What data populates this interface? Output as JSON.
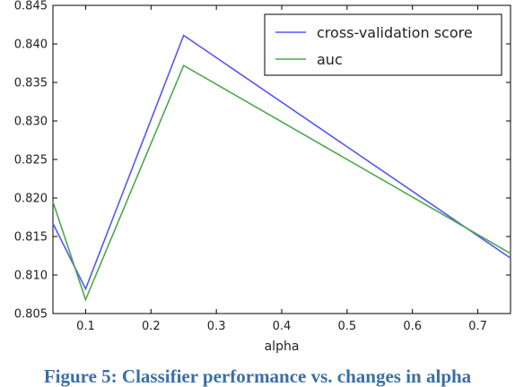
{
  "caption": "Figure 5: Classifier performance vs. changes in alpha",
  "chart_data": {
    "type": "line",
    "xlabel": "alpha",
    "ylabel": "",
    "xlim": [
      0.05,
      0.75
    ],
    "ylim": [
      0.805,
      0.845
    ],
    "x_ticks": [
      0.1,
      0.2,
      0.3,
      0.4,
      0.5,
      0.6,
      0.7
    ],
    "x_tick_labels": [
      "0.1",
      "0.2",
      "0.3",
      "0.4",
      "0.5",
      "0.6",
      "0.7"
    ],
    "y_ticks": [
      0.805,
      0.81,
      0.815,
      0.82,
      0.825,
      0.83,
      0.835,
      0.84,
      0.845
    ],
    "y_tick_labels": [
      "0.805",
      "0.810",
      "0.815",
      "0.820",
      "0.825",
      "0.830",
      "0.835",
      "0.840",
      "0.845"
    ],
    "grid": false,
    "legend_position": "top-right",
    "series": [
      {
        "name": "cross-validation score",
        "color": "#5555ff",
        "x": [
          0.05,
          0.1,
          0.25,
          0.75
        ],
        "y": [
          0.8167,
          0.8082,
          0.8411,
          0.8122
        ]
      },
      {
        "name": "auc",
        "color": "#4aa84a",
        "x": [
          0.05,
          0.1,
          0.25,
          0.75
        ],
        "y": [
          0.8195,
          0.8068,
          0.8372,
          0.8128
        ]
      }
    ]
  }
}
